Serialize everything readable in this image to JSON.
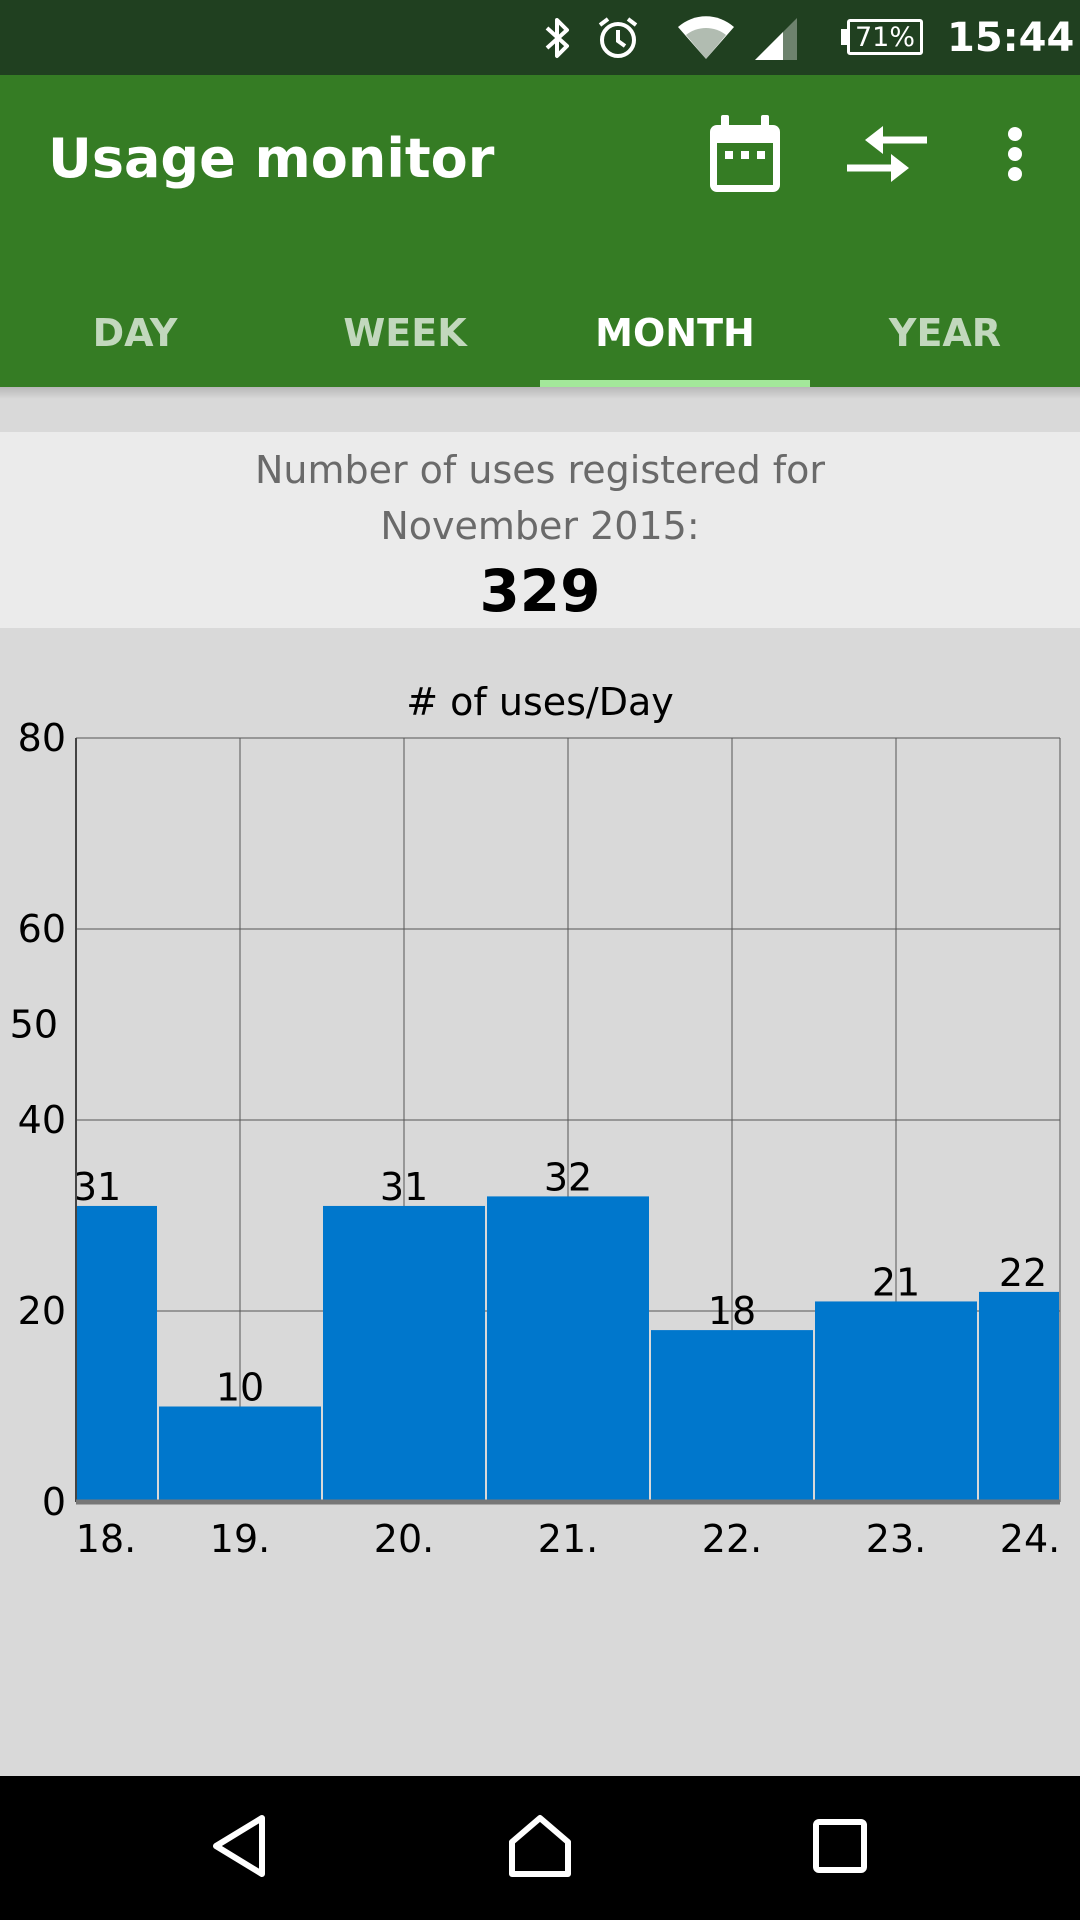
{
  "status_bar": {
    "battery": "71%",
    "time": "15:44",
    "icons": [
      "bluetooth-icon",
      "alarm-icon",
      "wifi-icon",
      "signal-icon",
      "battery-icon"
    ]
  },
  "app_bar": {
    "title": "Usage monitor",
    "actions": [
      "calendar-icon",
      "compare-arrows-icon",
      "more-vert-icon"
    ]
  },
  "tabs": [
    {
      "label": "DAY",
      "active": false
    },
    {
      "label": "WEEK",
      "active": false
    },
    {
      "label": "MONTH",
      "active": true
    },
    {
      "label": "YEAR",
      "active": false
    }
  ],
  "summary": {
    "line1": "Number of uses registered for",
    "line2": "November 2015:",
    "count": "329"
  },
  "chart_data": {
    "type": "bar",
    "title": "# of uses/Day",
    "categories": [
      "18.",
      "19.",
      "20.",
      "21.",
      "22.",
      "23.",
      "24."
    ],
    "values": [
      31,
      10,
      31,
      32,
      18,
      21,
      22
    ],
    "y_ticks": [
      0,
      20,
      40,
      50,
      60,
      80
    ],
    "ylim": [
      0,
      80
    ],
    "grid": true,
    "bar_color": "#0077cc"
  },
  "colors": {
    "app_bar": "#357c24",
    "status_bar": "#204020",
    "tab_indicator": "#a3e89a"
  },
  "nav_bar": {
    "buttons": [
      "back-icon",
      "home-icon",
      "recents-icon"
    ]
  }
}
